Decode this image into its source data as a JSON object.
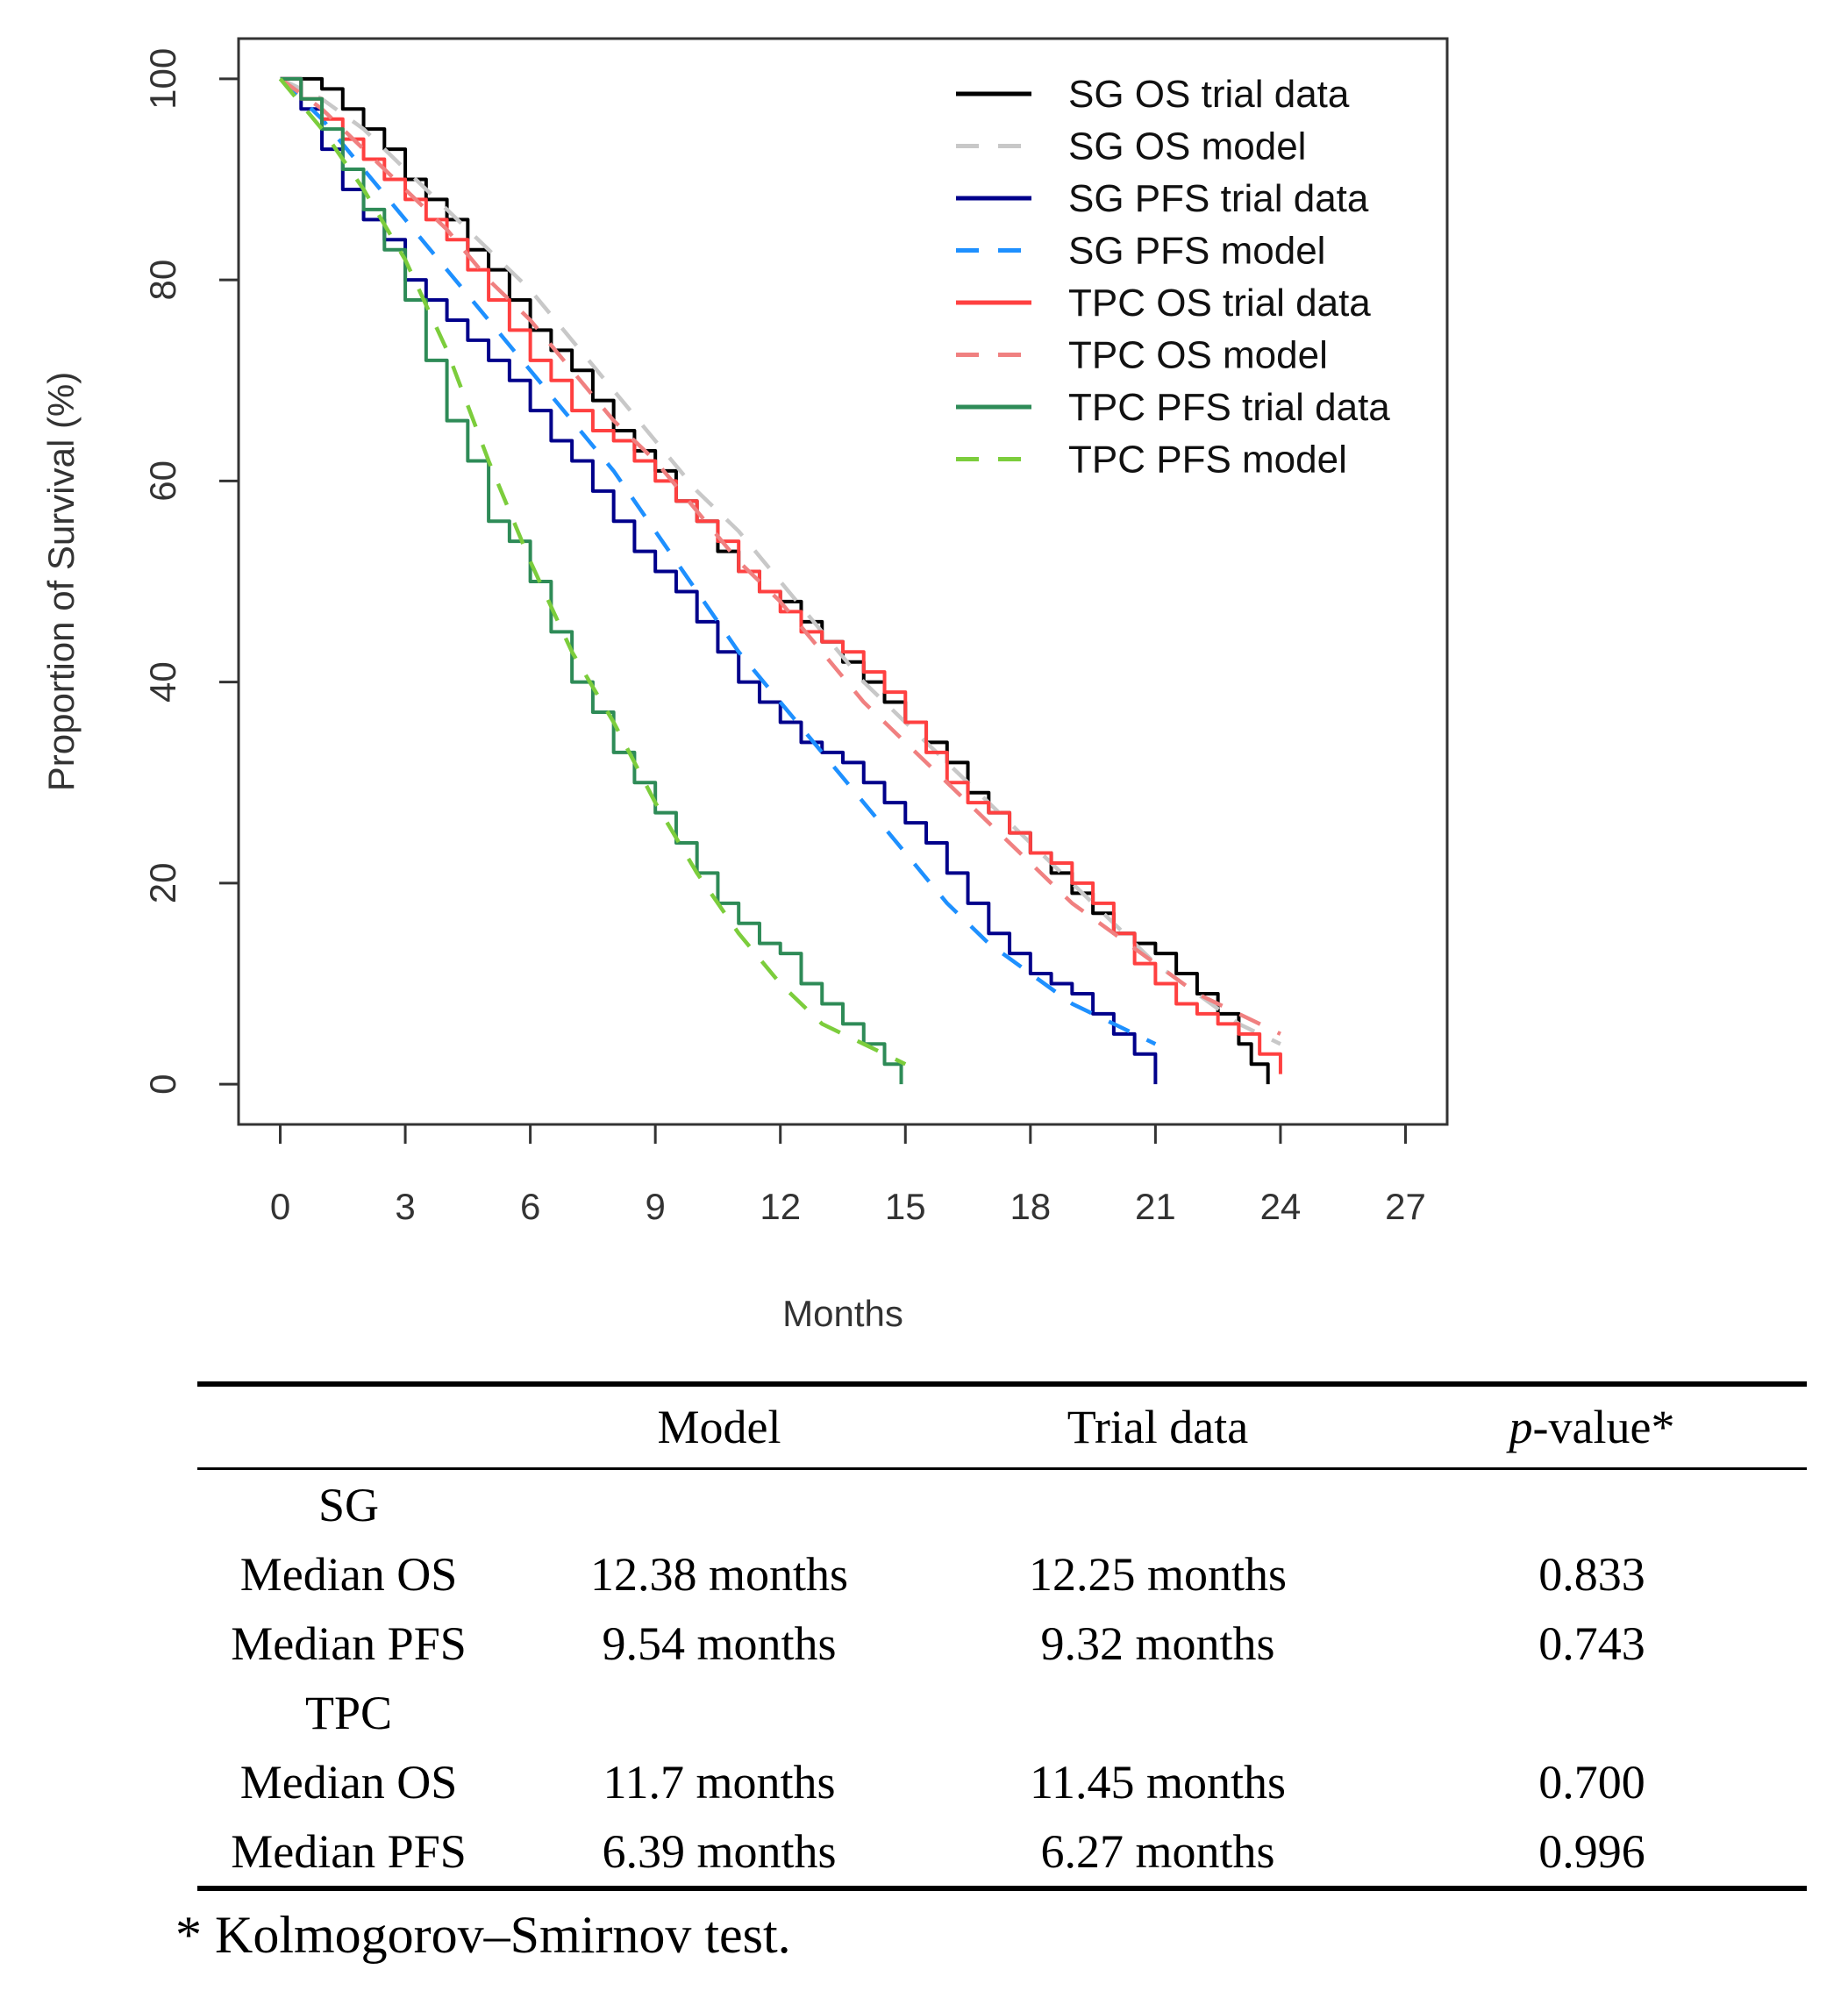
{
  "chart_data": {
    "type": "line",
    "title": "",
    "xlabel": "Months",
    "ylabel": "Proportion of Survival (%)",
    "xlim": [
      -1,
      28
    ],
    "ylim": [
      -4,
      104
    ],
    "xticks": [
      0,
      3,
      6,
      9,
      12,
      15,
      18,
      21,
      24,
      27
    ],
    "yticks": [
      0,
      20,
      40,
      60,
      80,
      100
    ],
    "legend_position": "top-right",
    "series": [
      {
        "name": "SG OS trial data",
        "color": "#000000",
        "dash": "solid",
        "step": true,
        "x": [
          0,
          0.5,
          1,
          1.5,
          2,
          2.5,
          3,
          3.5,
          4,
          4.5,
          5,
          5.5,
          6,
          6.5,
          7,
          7.5,
          8,
          8.5,
          9,
          9.5,
          10,
          10.5,
          11,
          11.5,
          12,
          12.5,
          13,
          13.5,
          14,
          14.5,
          15,
          15.5,
          16,
          16.5,
          17,
          17.5,
          18,
          18.5,
          19,
          19.5,
          20,
          20.5,
          21,
          21.5,
          22,
          22.5,
          23,
          23.3,
          23.7
        ],
        "y": [
          100,
          100,
          99,
          97,
          95,
          93,
          90,
          88,
          86,
          83,
          81,
          78,
          75,
          73,
          71,
          68,
          65,
          63,
          61,
          58,
          56,
          53,
          51,
          49,
          48,
          46,
          44,
          42,
          40,
          38,
          36,
          34,
          32,
          29,
          27,
          25,
          23,
          21,
          19,
          17,
          15,
          14,
          13,
          11,
          9,
          7,
          4,
          2,
          0
        ]
      },
      {
        "name": "SG OS model",
        "color": "#c8c8c8",
        "dash": "dashed",
        "step": false,
        "x": [
          0,
          1,
          2,
          3,
          4,
          5,
          6,
          7,
          8,
          9,
          10,
          11,
          12,
          13,
          14,
          15,
          16,
          17,
          18,
          19,
          20,
          21,
          22,
          23,
          24
        ],
        "y": [
          100,
          98,
          95,
          91,
          87,
          83,
          79,
          74,
          69,
          64,
          59,
          55,
          50,
          45,
          40,
          36,
          32,
          28,
          24,
          20,
          16,
          12,
          9,
          6,
          4
        ]
      },
      {
        "name": "SG PFS trial data",
        "color": "#00008b",
        "dash": "solid",
        "step": true,
        "x": [
          0,
          0.5,
          1,
          1.5,
          2,
          2.5,
          3,
          3.5,
          4,
          4.5,
          5,
          5.5,
          6,
          6.5,
          7,
          7.5,
          8,
          8.5,
          9,
          9.5,
          10,
          10.5,
          11,
          11.5,
          12,
          12.5,
          13,
          13.5,
          14,
          14.5,
          15,
          15.5,
          16,
          16.5,
          17,
          17.5,
          18,
          18.5,
          19,
          19.5,
          20,
          20.5,
          21
        ],
        "y": [
          100,
          97,
          93,
          89,
          86,
          84,
          80,
          78,
          76,
          74,
          72,
          70,
          67,
          64,
          62,
          59,
          56,
          53,
          51,
          49,
          46,
          43,
          40,
          38,
          36,
          34,
          33,
          32,
          30,
          28,
          26,
          24,
          21,
          18,
          15,
          13,
          11,
          10,
          9,
          7,
          5,
          3,
          0
        ]
      },
      {
        "name": "SG PFS model",
        "color": "#1e90ff",
        "dash": "dashed",
        "step": false,
        "x": [
          0,
          1,
          2,
          3,
          4,
          5,
          6,
          7,
          8,
          9,
          10,
          11,
          12,
          13,
          14,
          15,
          16,
          17,
          18,
          19,
          20,
          21
        ],
        "y": [
          100,
          96,
          91,
          86,
          81,
          76,
          71,
          66,
          61,
          55,
          49,
          43,
          38,
          33,
          28,
          23,
          18,
          14,
          11,
          8,
          6,
          4
        ]
      },
      {
        "name": "TPC OS trial data",
        "color": "#ff4040",
        "dash": "solid",
        "step": true,
        "x": [
          0,
          0.5,
          1,
          1.5,
          2,
          2.5,
          3,
          3.5,
          4,
          4.5,
          5,
          5.5,
          6,
          6.5,
          7,
          7.5,
          8,
          8.5,
          9,
          9.5,
          10,
          10.5,
          11,
          11.5,
          12,
          12.5,
          13,
          13.5,
          14,
          14.5,
          15,
          15.5,
          16,
          16.5,
          17,
          17.5,
          18,
          18.5,
          19,
          19.5,
          20,
          20.5,
          21,
          21.5,
          22,
          22.5,
          23,
          23.5,
          24
        ],
        "y": [
          100,
          98,
          96,
          94,
          92,
          90,
          88,
          86,
          84,
          81,
          78,
          75,
          72,
          70,
          67,
          65,
          64,
          62,
          60,
          58,
          56,
          54,
          51,
          49,
          47,
          45,
          44,
          43,
          41,
          39,
          36,
          33,
          30,
          28,
          27,
          25,
          23,
          22,
          20,
          18,
          15,
          12,
          10,
          8,
          7,
          6,
          5,
          3,
          1
        ]
      },
      {
        "name": "TPC OS model",
        "color": "#f08080",
        "dash": "dashed",
        "step": false,
        "x": [
          0,
          1,
          2,
          3,
          4,
          5,
          6,
          7,
          8,
          9,
          10,
          11,
          12,
          13,
          14,
          15,
          16,
          17,
          18,
          19,
          20,
          21,
          22,
          23,
          24
        ],
        "y": [
          100,
          97,
          93,
          89,
          85,
          80,
          76,
          71,
          66,
          62,
          57,
          52,
          48,
          43,
          38,
          34,
          30,
          26,
          22,
          18,
          15,
          12,
          9,
          7,
          5
        ]
      },
      {
        "name": "TPC PFS trial data",
        "color": "#2e8b57",
        "dash": "solid",
        "step": true,
        "x": [
          0,
          0.5,
          1,
          1.5,
          2,
          2.5,
          3,
          3.5,
          4,
          4.5,
          5,
          5.5,
          6,
          6.5,
          7,
          7.5,
          8,
          8.5,
          9,
          9.5,
          10,
          10.5,
          11,
          11.5,
          12,
          12.5,
          13,
          13.5,
          14,
          14.5,
          14.9
        ],
        "y": [
          100,
          98,
          95,
          91,
          87,
          83,
          78,
          72,
          66,
          62,
          56,
          54,
          50,
          45,
          40,
          37,
          33,
          30,
          27,
          24,
          21,
          18,
          16,
          14,
          13,
          10,
          8,
          6,
          4,
          2,
          0
        ]
      },
      {
        "name": "TPC PFS model",
        "color": "#7ccd3c",
        "dash": "dashed",
        "step": false,
        "x": [
          0,
          1,
          2,
          3,
          4,
          5,
          6,
          7,
          8,
          9,
          10,
          11,
          12,
          13,
          14,
          15
        ],
        "y": [
          100,
          95,
          89,
          82,
          73,
          62,
          52,
          43,
          36,
          28,
          21,
          15,
          10,
          6,
          4,
          2
        ]
      }
    ]
  },
  "table": {
    "headers": [
      "",
      "Model",
      "Trial data",
      "-value*"
    ],
    "p_italic": "p",
    "rows": [
      {
        "label": "SG",
        "model": "",
        "trial": "",
        "p": ""
      },
      {
        "label": "Median OS",
        "model": "12.38 months",
        "trial": "12.25 months",
        "p": "0.833"
      },
      {
        "label": "Median PFS",
        "model": "9.54 months",
        "trial": "9.32 months",
        "p": "0.743"
      },
      {
        "label": "TPC",
        "model": "",
        "trial": "",
        "p": ""
      },
      {
        "label": "Median OS",
        "model": "11.7 months",
        "trial": "11.45 months",
        "p": "0.700"
      },
      {
        "label": "Median PFS",
        "model": "6.39 months",
        "trial": "6.27 months",
        "p": "0.996"
      }
    ]
  },
  "footnote": "* Kolmogorov–Smirnov test."
}
